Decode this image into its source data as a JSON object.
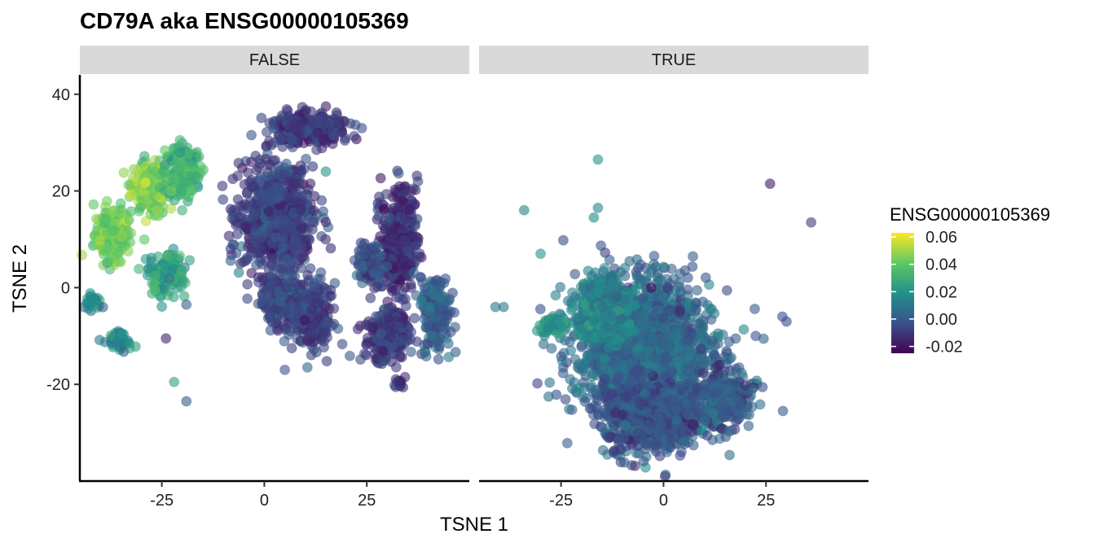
{
  "chart_data": {
    "type": "scatter",
    "title": "CD79A  aka ENSG00000105369",
    "xlabel": "TSNE 1",
    "ylabel": "TSNE 2",
    "xlim": [
      -45,
      50
    ],
    "ylim": [
      -40,
      44
    ],
    "x_ticks": [
      -25,
      0,
      25
    ],
    "y_ticks": [
      40,
      20,
      0,
      -20
    ],
    "x_tick_labels": [
      "-25",
      "0",
      "25"
    ],
    "y_tick_labels": [
      "40",
      "20",
      "0",
      "-20"
    ],
    "grid": false,
    "facet_variable_values": [
      "FALSE",
      "TRUE"
    ],
    "legend": {
      "title": "ENSG00000105369",
      "position": "right",
      "range": [
        -0.025,
        0.063
      ],
      "ticks": [
        0.06,
        0.04,
        0.02,
        0.0,
        -0.02
      ],
      "tick_labels": [
        "0.06",
        "0.04",
        "0.02",
        "0.00",
        "-0.02"
      ],
      "colormap": "viridis"
    },
    "panels": [
      {
        "label": "FALSE",
        "clusters": [
          {
            "cx": -37,
            "cy": 11,
            "rx": 4,
            "ry": 5,
            "value": 0.042
          },
          {
            "cx": -28,
            "cy": 21,
            "rx": 4,
            "ry": 5,
            "value": 0.045
          },
          {
            "cx": -20,
            "cy": 24,
            "rx": 4,
            "ry": 5,
            "value": 0.03
          },
          {
            "cx": -24,
            "cy": 3,
            "rx": 4,
            "ry": 4,
            "value": 0.024
          },
          {
            "cx": -35,
            "cy": -11,
            "rx": 2.5,
            "ry": 2,
            "value": 0.014
          },
          {
            "cx": -42,
            "cy": -3,
            "rx": 2,
            "ry": 1.5,
            "value": 0.02
          },
          {
            "cx": 3,
            "cy": 14,
            "rx": 8,
            "ry": 10,
            "value": -0.008
          },
          {
            "cx": 6,
            "cy": -3,
            "rx": 6,
            "ry": 5,
            "value": -0.005
          },
          {
            "cx": 11,
            "cy": 33,
            "rx": 9,
            "ry": 3,
            "value": -0.01
          },
          {
            "cx": 12,
            "cy": -6,
            "rx": 4,
            "ry": 6,
            "value": -0.008
          },
          {
            "cx": 33,
            "cy": 10,
            "rx": 4,
            "ry": 10,
            "value": -0.012
          },
          {
            "cx": 26,
            "cy": 5,
            "rx": 3,
            "ry": 4,
            "value": -0.005
          },
          {
            "cx": 30,
            "cy": -10,
            "rx": 5,
            "ry": 5,
            "value": -0.008
          },
          {
            "cx": 42,
            "cy": -5,
            "rx": 3,
            "ry": 7,
            "value": 0.002
          },
          {
            "cx": 33,
            "cy": -20,
            "rx": 1.5,
            "ry": 1,
            "value": -0.012
          }
        ],
        "points": [
          {
            "x": -22,
            "y": -19.5,
            "value": 0.025
          },
          {
            "x": -19,
            "y": -23.5,
            "value": 0.0
          },
          {
            "x": -24,
            "y": -10.5,
            "value": -0.015
          },
          {
            "x": 5,
            "y": -17,
            "value": -0.002
          },
          {
            "x": 10.5,
            "y": -16.5,
            "value": 0.005
          },
          {
            "x": 15,
            "y": 24,
            "value": 0.02
          },
          {
            "x": -19,
            "y": -3.5,
            "value": 0.0
          }
        ]
      },
      {
        "label": "TRUE",
        "clusters": [
          {
            "cx": -5,
            "cy": -13,
            "rx": 15,
            "ry": 13,
            "value": 0.005
          },
          {
            "cx": -3,
            "cy": -27,
            "rx": 10,
            "ry": 7,
            "value": -0.002
          },
          {
            "cx": 15,
            "cy": -23,
            "rx": 6,
            "ry": 5,
            "value": 0.0
          },
          {
            "cx": -15,
            "cy": -5,
            "rx": 6,
            "ry": 6,
            "value": 0.015
          },
          {
            "cx": -27,
            "cy": -8,
            "rx": 3,
            "ry": 2,
            "value": 0.02
          },
          {
            "cx": -14,
            "cy": -1,
            "rx": 3,
            "ry": 3,
            "value": 0.012
          }
        ],
        "points": [
          {
            "x": -16,
            "y": 26.5,
            "value": 0.02
          },
          {
            "x": -17,
            "y": 14.5,
            "value": 0.018
          },
          {
            "x": -16,
            "y": 16.5,
            "value": 0.015
          },
          {
            "x": -34,
            "y": 16,
            "value": 0.014
          },
          {
            "x": -30,
            "y": 7,
            "value": 0.02
          },
          {
            "x": 26,
            "y": 21.5,
            "value": -0.018
          },
          {
            "x": 36,
            "y": 13.5,
            "value": -0.008
          },
          {
            "x": 29,
            "y": -6,
            "value": -0.005
          },
          {
            "x": 30,
            "y": -7,
            "value": -0.005
          },
          {
            "x": 22.5,
            "y": -10,
            "value": -0.002
          },
          {
            "x": -41,
            "y": -4,
            "value": 0.01
          },
          {
            "x": -39,
            "y": -4,
            "value": 0.01
          },
          {
            "x": 12,
            "y": -11,
            "value": 0.0
          },
          {
            "x": 4,
            "y": -5,
            "value": -0.015
          },
          {
            "x": -3,
            "y": 0,
            "value": -0.022
          },
          {
            "x": 1,
            "y": 0,
            "value": -0.01
          },
          {
            "x": 4,
            "y": -4.5,
            "value": -0.012
          }
        ]
      }
    ]
  }
}
